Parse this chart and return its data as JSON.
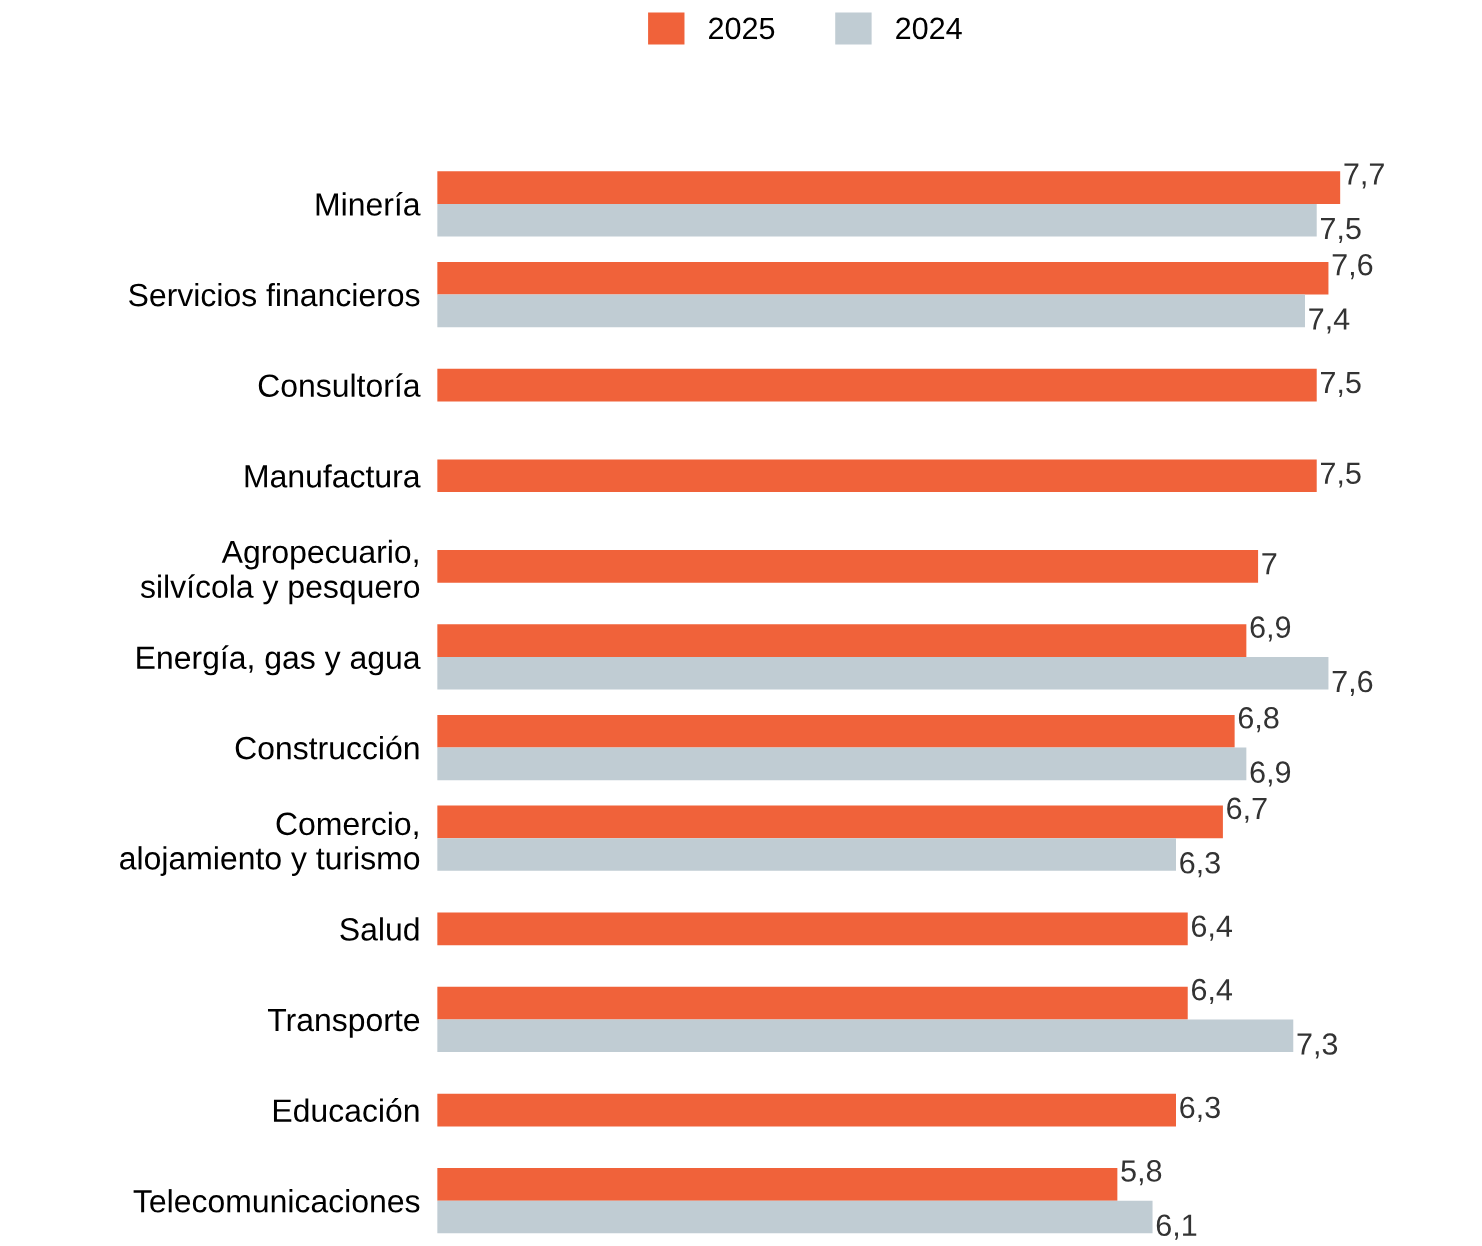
{
  "chart_data": {
    "type": "bar",
    "orientation": "horizontal",
    "legend": "top",
    "categories": [
      "Minería",
      "Servicios financieros",
      "Consultoría",
      "Manufactura",
      "Agropecuario,\nsilvícola y pesquero",
      "Energía, gas y agua",
      "Construcción",
      "Comercio,\nalojamiento y turismo",
      "Salud",
      "Transporte",
      "Educación",
      "Telecomunicaciones"
    ],
    "series": [
      {
        "name": "2025",
        "color": "#f0623a",
        "values": [
          7.7,
          7.6,
          7.5,
          7.5,
          7,
          6.9,
          6.8,
          6.7,
          6.4,
          6.4,
          6.3,
          5.8
        ],
        "value_labels": [
          "7,7",
          "7,6",
          "7,5",
          "7,5",
          "7",
          "6,9",
          "6,8",
          "6,7",
          "6,4",
          "6,4",
          "6,3",
          "5,8"
        ]
      },
      {
        "name": "2024",
        "color": "#c0ccd3",
        "values": [
          7.5,
          7.4,
          null,
          null,
          null,
          7.6,
          6.9,
          6.3,
          null,
          7.3,
          null,
          6.1
        ],
        "value_labels": [
          "7,5",
          "7,4",
          null,
          null,
          null,
          "7,6",
          "6,9",
          "6,3",
          null,
          "7,3",
          null,
          "6,1"
        ]
      }
    ]
  }
}
